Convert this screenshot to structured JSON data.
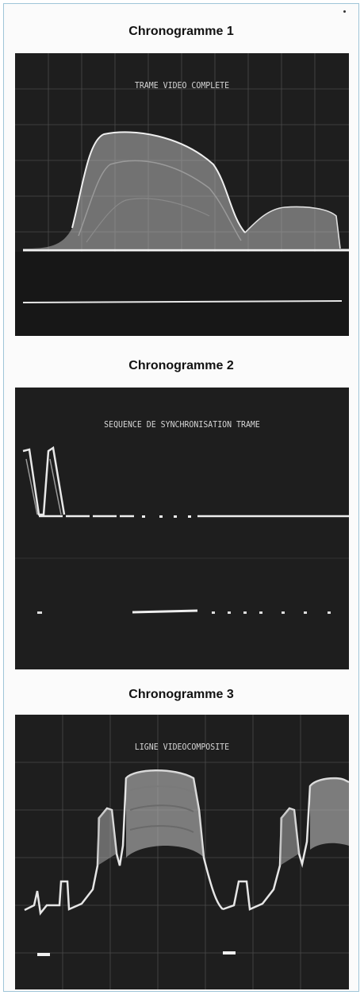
{
  "figures": [
    {
      "heading": "Chronogramme 1",
      "screen_label": "TRAME VIDEO COMPLETE"
    },
    {
      "heading": "Chronogramme 2",
      "screen_label": "SEQUENCE DE SYNCHRONISATION TRAME"
    },
    {
      "heading": "Chronogramme 3",
      "screen_label": "LIGNE VIDEOCOMPOSITE"
    }
  ],
  "colors": {
    "screen_background": "#1e1e1e",
    "trace": "#e8e8e8",
    "graticule": "#5a5a5a",
    "frame_border": "#9fc5d8"
  }
}
